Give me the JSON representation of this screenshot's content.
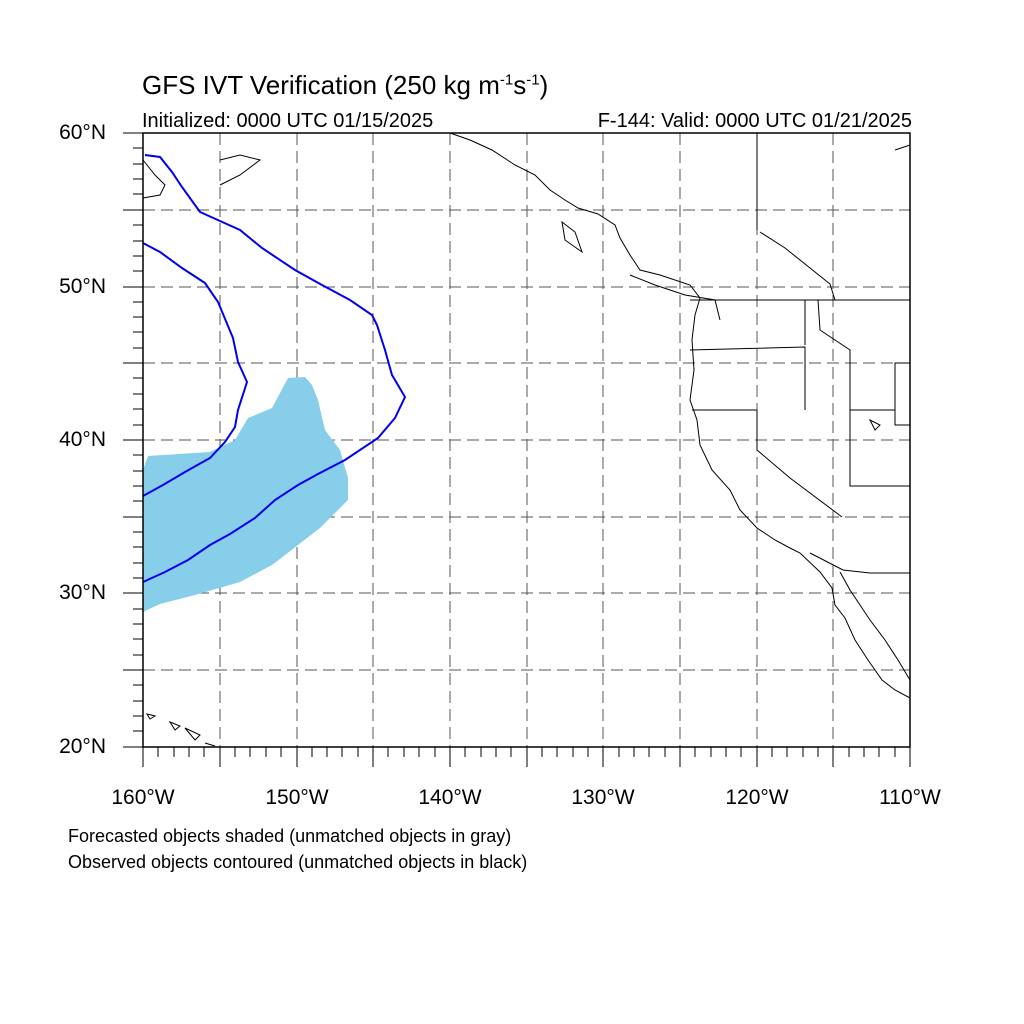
{
  "title": {
    "main": "GFS IVT Verification (250 kg m",
    "exp1": "-1",
    "mid": "s",
    "exp2": "-1",
    "close": ")"
  },
  "initialized": "Initialized: 0000 UTC 01/15/2025",
  "valid": "F-144: Valid: 0000 UTC 01/21/2025",
  "lat_labels": [
    "60°N",
    "50°N",
    "40°N",
    "30°N",
    "20°N"
  ],
  "lon_labels": [
    "160°W",
    "150°W",
    "140°W",
    "130°W",
    "120°W",
    "110°W"
  ],
  "notes": [
    "Forecasted objects shaded (unmatched objects in gray)",
    "Observed objects contoured (unmatched objects in black)"
  ],
  "map": {
    "lat_range": [
      20,
      60
    ],
    "lon_range": [
      -160,
      -110
    ],
    "grid_spacing_deg": 5,
    "gridlines": "dashed",
    "forecast_color": "#87ceeb",
    "observed_color": "#0000ee",
    "coast_color": "#000000"
  }
}
